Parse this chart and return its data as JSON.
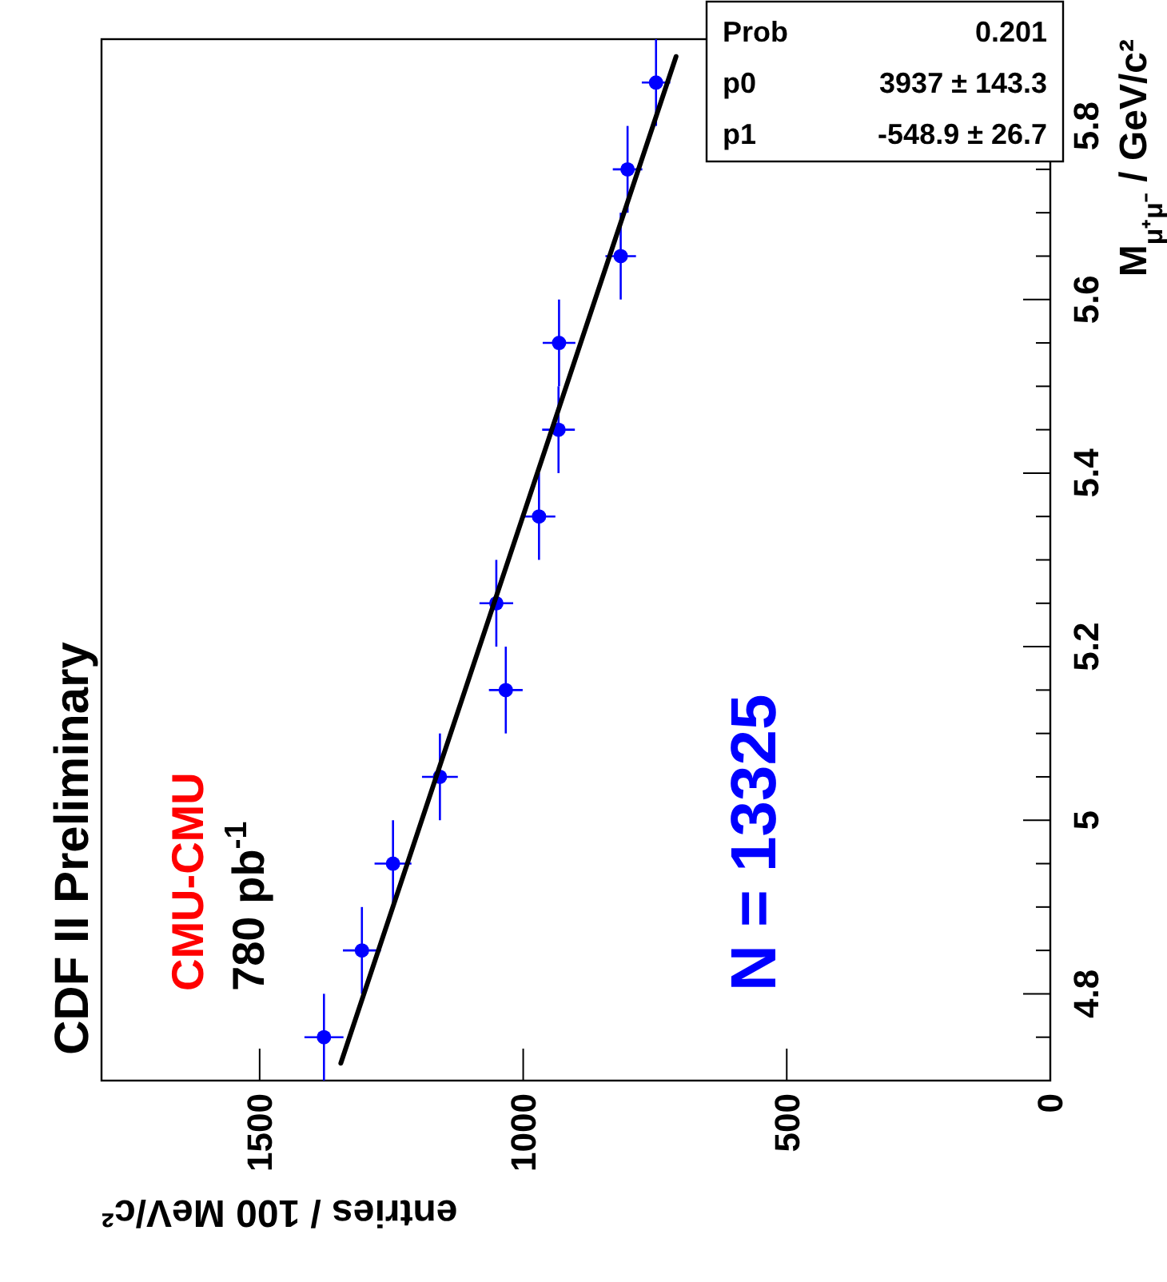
{
  "chart_data": {
    "type": "scatter",
    "title": "CDF II Preliminary",
    "ylabel": "M$_{μ⁺μ⁻}$ / GeV/c²",
    "xlabel": "entries / 100 MeV/c²",
    "ylim": [
      4.7,
      5.9
    ],
    "xlim": [
      1800,
      0
    ],
    "yticks": [
      {
        "value": 4.75,
        "label": null
      },
      4.8,
      {
        "value": 4.85,
        "label": null
      },
      {
        "value": 4.9,
        "label": null
      },
      {
        "value": 4.95,
        "label": null
      },
      5,
      {
        "value": 5.05,
        "label": null
      },
      {
        "value": 5.1,
        "label": null
      },
      {
        "value": 5.15,
        "label": null
      },
      5.2,
      {
        "value": 5.25,
        "label": null
      },
      {
        "value": 5.3,
        "label": null
      },
      {
        "value": 5.35,
        "label": null
      },
      5.4,
      {
        "value": 5.45,
        "label": null
      },
      {
        "value": 5.5,
        "label": null
      },
      {
        "value": 5.55,
        "label": null
      },
      5.6,
      {
        "value": 5.65,
        "label": null
      },
      {
        "value": 5.7,
        "label": null
      },
      {
        "value": 5.75,
        "label": null
      },
      5.8,
      {
        "value": 5.85,
        "label": null
      }
    ],
    "xticks": [
      1500,
      1000,
      500,
      0
    ],
    "series": [
      {
        "type": "scatter",
        "marker": "circle",
        "color": "#0000ff",
        "values": [
          4.75,
          4.85,
          4.95,
          5.05,
          5.15,
          5.25,
          5.35,
          5.45,
          5.55,
          5.65,
          5.75,
          5.85
        ],
        "x": [
          1378,
          1306,
          1247,
          1158,
          1033,
          1051,
          970,
          933,
          932,
          815,
          802,
          748
        ],
        "xerrors": [
          37,
          36,
          35,
          34,
          32,
          32,
          31,
          31,
          31,
          29,
          28,
          27
        ],
        "errors": [
          0.05,
          0.05,
          0.05,
          0.05,
          0.05,
          0.05,
          0.05,
          0.05,
          0.05,
          0.05,
          0.05,
          0.05
        ]
      },
      {
        "type": "line",
        "marker": "none",
        "color": "#000000",
        "values": [
          4.72,
          5.88
        ],
        "x": [
          1346,
          710
        ]
      }
    ],
    "annotations": [
      "CMU-CMU",
      "780 pb$^{-1}$",
      "N = 13325",
      "Prob",
      "0.201",
      "p0",
      "3937 ± 143.3",
      "p1",
      "-548.9 ± 26.7"
    ]
  }
}
